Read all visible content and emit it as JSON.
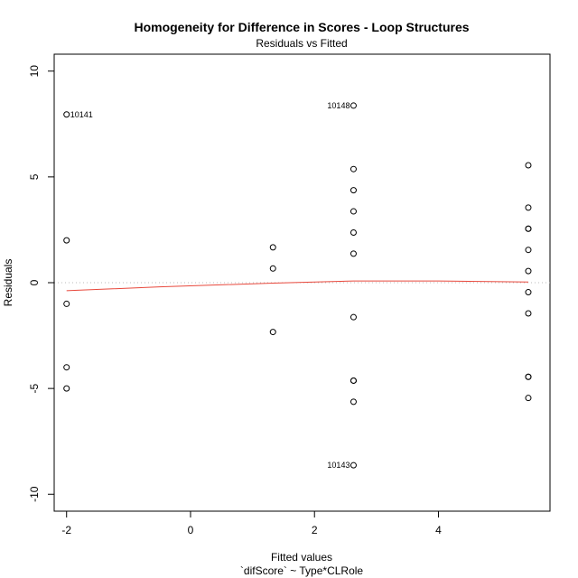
{
  "chart_data": {
    "type": "scatter",
    "title": "Homogeneity for Difference in Scores - Loop Structures",
    "subtitle": "Residuals vs Fitted",
    "xlabel": "Fitted values",
    "xlabel_sub": "`difScore` ~ Type*CLRole",
    "ylabel": "Residuals",
    "xlim": [
      -2.2,
      5.8
    ],
    "ylim": [
      -10.8,
      10.8
    ],
    "x_ticks": [
      -2,
      0,
      2,
      4
    ],
    "x_tick_labels": [
      "-2",
      "0",
      "2",
      "4"
    ],
    "y_ticks": [
      -10,
      -5,
      0,
      5,
      10
    ],
    "y_tick_labels": [
      "-10",
      "-5",
      "0",
      "5",
      "10"
    ],
    "reference_line": {
      "y": 0,
      "style": "dotted",
      "color": "#bbbbbb"
    },
    "points": [
      {
        "x": -2.0,
        "y": 7.95,
        "label": "10141"
      },
      {
        "x": -2.0,
        "y": 2.0
      },
      {
        "x": -2.0,
        "y": -1.0
      },
      {
        "x": -2.0,
        "y": -4.0
      },
      {
        "x": -2.0,
        "y": -5.0
      },
      {
        "x": 1.33,
        "y": 1.67
      },
      {
        "x": 1.33,
        "y": 0.67
      },
      {
        "x": 1.33,
        "y": -2.33
      },
      {
        "x": 2.63,
        "y": 8.37,
        "label": "10148"
      },
      {
        "x": 2.63,
        "y": 5.37
      },
      {
        "x": 2.63,
        "y": 4.37
      },
      {
        "x": 2.63,
        "y": 3.37
      },
      {
        "x": 2.63,
        "y": 2.37
      },
      {
        "x": 2.63,
        "y": 1.37
      },
      {
        "x": 2.63,
        "y": -1.63
      },
      {
        "x": 2.63,
        "y": -4.63
      },
      {
        "x": 2.63,
        "y": -4.63
      },
      {
        "x": 2.63,
        "y": -5.63
      },
      {
        "x": 2.63,
        "y": -8.63,
        "label": "10143"
      },
      {
        "x": 5.45,
        "y": 5.55
      },
      {
        "x": 5.45,
        "y": 3.55
      },
      {
        "x": 5.45,
        "y": 2.55
      },
      {
        "x": 5.45,
        "y": 2.55
      },
      {
        "x": 5.45,
        "y": 1.55
      },
      {
        "x": 5.45,
        "y": 0.55
      },
      {
        "x": 5.45,
        "y": -0.45
      },
      {
        "x": 5.45,
        "y": -1.45
      },
      {
        "x": 5.45,
        "y": -4.45
      },
      {
        "x": 5.45,
        "y": -4.45
      },
      {
        "x": 5.45,
        "y": -5.45
      }
    ],
    "smooth_line": {
      "color": "#e8483c",
      "points": [
        [
          -2.0,
          -0.38
        ],
        [
          -0.5,
          -0.2
        ],
        [
          1.33,
          -0.02
        ],
        [
          2.63,
          0.08
        ],
        [
          4.0,
          0.08
        ],
        [
          5.45,
          0.03
        ]
      ]
    },
    "grid": false
  }
}
